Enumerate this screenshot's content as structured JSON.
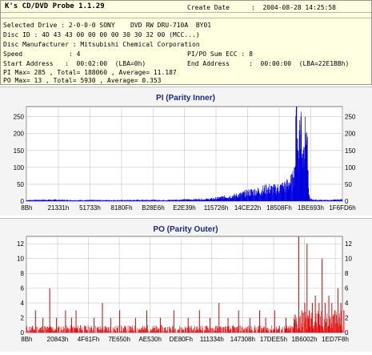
{
  "header": {
    "app_title": "K's CD/DVD Probe 1.1.29",
    "create_date_label": "Create Date",
    "create_date_value": ":  2004-08-28 14:25:58",
    "lines": [
      "Selected Drive : 2-0-0-0 SONY    DVD RW DRU-710A  BY01",
      "Disc ID : 4D 43 43 00 00 00 00 30 30 32 00 (MCC...)",
      "Disc Manufacturer : Mitsubishi Chemical Corporation"
    ],
    "speed_label": "Speed",
    "speed_value": ": 4",
    "pipo_label": "PI/PO Sum ECC : 8",
    "start_address": "Start Address   :  00:02:00  (LBA=0h)",
    "end_address": "End Address     :  00:00:00  (LBA=22E1BBh)",
    "pi_stats": "PI Max= 285 , Total= 188060 , Average= 11.187",
    "po_stats": "PO Max= 13 , Total= 5930 , Average= 0.353"
  },
  "chart_data": [
    {
      "type": "area",
      "title": "PI (Parity Inner)",
      "color": "#0000e0",
      "ylim": [
        0,
        280
      ],
      "yticks": [
        0,
        50,
        100,
        150,
        200,
        250
      ],
      "xtick_labels": [
        "8Bh",
        "21331h",
        "51733h",
        "8180Fh",
        "B28E6h",
        "E2E39h",
        "115726h",
        "14CE22h",
        "18508Fh",
        "1BE693h",
        "1F6FD6h"
      ],
      "xtick_positions": [
        0.4,
        42.5,
        84.5,
        126.5,
        168.5,
        210,
        252,
        294,
        336,
        378,
        420
      ],
      "x": [
        0,
        20,
        40,
        60,
        80,
        100,
        120,
        140,
        160,
        180,
        200,
        210,
        220,
        230,
        240,
        250,
        260,
        270,
        280,
        290,
        300,
        310,
        320,
        330,
        340,
        350,
        355,
        357,
        359,
        361,
        363,
        365,
        367,
        369,
        371,
        373,
        375,
        377,
        385,
        400,
        420
      ],
      "values": [
        3,
        4,
        4,
        3,
        3,
        3,
        3,
        3,
        4,
        3,
        4,
        5,
        5,
        6,
        6,
        8,
        12,
        15,
        18,
        24,
        30,
        32,
        40,
        38,
        45,
        55,
        70,
        100,
        285,
        150,
        210,
        250,
        140,
        160,
        200,
        180,
        30,
        6,
        4,
        3,
        5
      ]
    },
    {
      "type": "bar",
      "title": "PO (Parity Outer)",
      "color": "#e00000",
      "ylim": [
        0,
        13
      ],
      "yticks": [
        0,
        2,
        4,
        6,
        8,
        10,
        12
      ],
      "xtick_labels": [
        "8Bh",
        "20843h",
        "4F61Fh",
        "7E650h",
        "AE530h",
        "DE80Fh",
        "111334h",
        "147308h",
        "17DEE5h",
        "1B6002h",
        "1ED7F8h"
      ],
      "xtick_positions": [
        0.4,
        41.5,
        82.5,
        123.5,
        164.5,
        205.5,
        246.5,
        287.5,
        328.5,
        369.5,
        410.5
      ],
      "spikes": [
        {
          "x": 12,
          "v": 3
        },
        {
          "x": 22,
          "v": 2
        },
        {
          "x": 31,
          "v": 6
        },
        {
          "x": 40,
          "v": 2
        },
        {
          "x": 52,
          "v": 3
        },
        {
          "x": 60,
          "v": 2
        },
        {
          "x": 66,
          "v": 3
        },
        {
          "x": 72,
          "v": 1
        },
        {
          "x": 90,
          "v": 2
        },
        {
          "x": 101,
          "v": 4
        },
        {
          "x": 112,
          "v": 2
        },
        {
          "x": 124,
          "v": 3
        },
        {
          "x": 145,
          "v": 2
        },
        {
          "x": 160,
          "v": 3
        },
        {
          "x": 178,
          "v": 2
        },
        {
          "x": 196,
          "v": 3
        },
        {
          "x": 215,
          "v": 2
        },
        {
          "x": 230,
          "v": 3
        },
        {
          "x": 244,
          "v": 2
        },
        {
          "x": 256,
          "v": 4
        },
        {
          "x": 268,
          "v": 2
        },
        {
          "x": 282,
          "v": 3
        },
        {
          "x": 297,
          "v": 2
        },
        {
          "x": 310,
          "v": 3
        },
        {
          "x": 318,
          "v": 2
        },
        {
          "x": 330,
          "v": 3
        },
        {
          "x": 345,
          "v": 2
        },
        {
          "x": 356,
          "v": 2
        },
        {
          "x": 362,
          "v": 13
        },
        {
          "x": 366,
          "v": 3
        },
        {
          "x": 370,
          "v": 4
        },
        {
          "x": 373,
          "v": 12
        },
        {
          "x": 376,
          "v": 3
        },
        {
          "x": 380,
          "v": 4
        },
        {
          "x": 384,
          "v": 5
        },
        {
          "x": 389,
          "v": 4
        },
        {
          "x": 393,
          "v": 10
        },
        {
          "x": 397,
          "v": 4
        },
        {
          "x": 402,
          "v": 5
        },
        {
          "x": 406,
          "v": 4
        },
        {
          "x": 410,
          "v": 3
        },
        {
          "x": 414,
          "v": 6
        },
        {
          "x": 418,
          "v": 4
        },
        {
          "x": 422,
          "v": 3
        }
      ],
      "noise_range": [
        0,
        1
      ]
    }
  ]
}
